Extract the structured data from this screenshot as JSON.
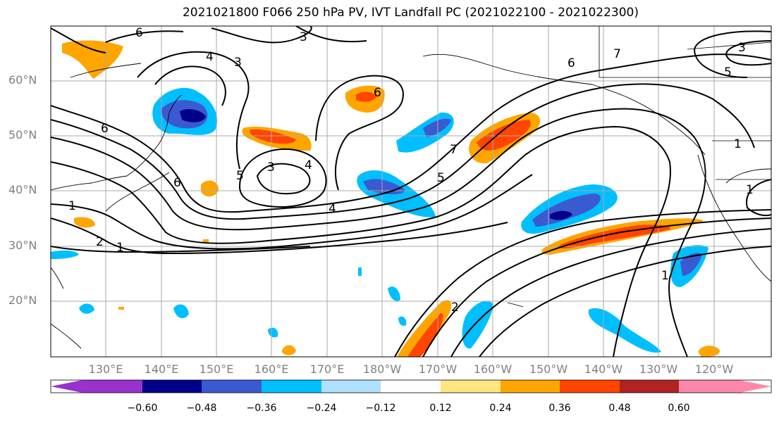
{
  "title": "2021021800 F066 250 hPa PV, IVT Landfall PC (2021022100 - 2021022300)",
  "lat_labels": [
    "60°N",
    "50°N",
    "40°N",
    "30°N",
    "20°N"
  ],
  "lon_labels": [
    "130°E",
    "140°E",
    "150°E",
    "160°E",
    "170°E",
    "180°W",
    "170°W",
    "160°W",
    "150°W",
    "140°W",
    "130°W",
    "120°W"
  ],
  "colorbar": {
    "colors": [
      "#9932cc",
      "#00008b",
      "#3a5ad0",
      "#00bfff",
      "#b0e0ff",
      "#ffffff",
      "#ffe680",
      "#ffa500",
      "#ff4500",
      "#b22222",
      "#ff88aa"
    ],
    "tick_labels": [
      "−0.60",
      "−0.48",
      "−0.36",
      "−0.24",
      "−0.12",
      "0.12",
      "0.24",
      "0.36",
      "0.48",
      "0.60"
    ]
  },
  "contour_labels": [
    "6",
    "3",
    "4",
    "3",
    "6",
    "7",
    "6",
    "3",
    "5",
    "1",
    "5",
    "3",
    "4",
    "6",
    "5",
    "4",
    "1",
    "2",
    "1",
    "7",
    "1",
    "1",
    "2",
    "6"
  ]
}
